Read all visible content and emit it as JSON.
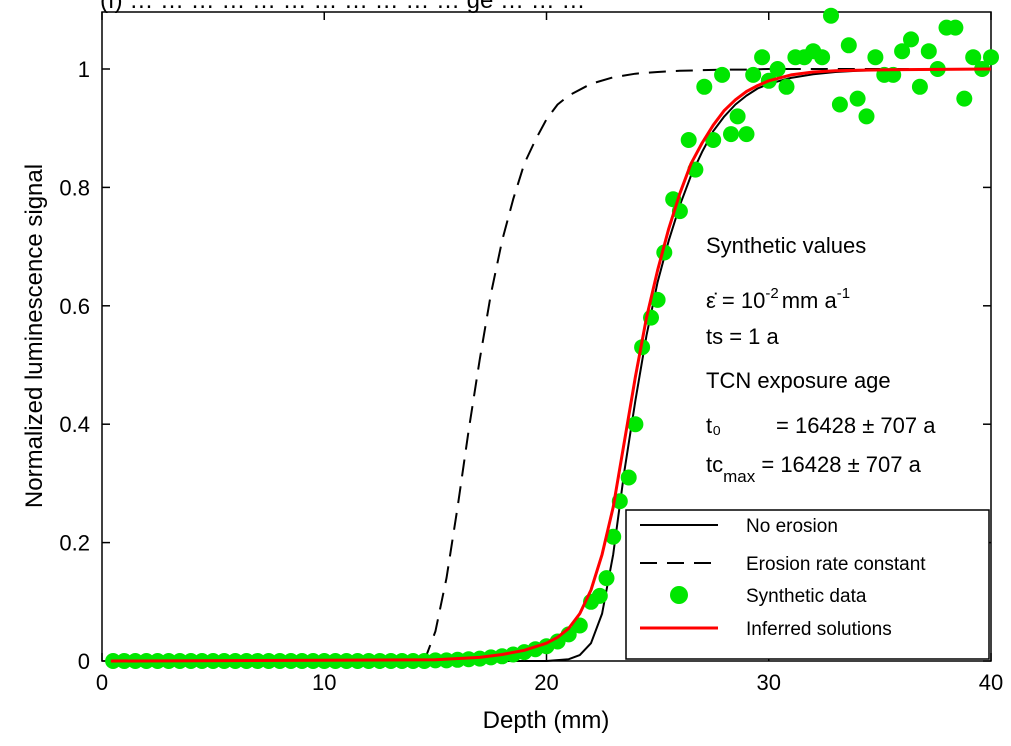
{
  "chart_data": {
    "type": "line",
    "title": "(f) … … … … … … … … … … … ge … … …",
    "xlabel": "Depth (mm)",
    "ylabel": "Normalized luminescence signal",
    "xlim": [
      0,
      40
    ],
    "ylim": [
      0,
      1.1
    ],
    "xticks": [
      0,
      10,
      20,
      30,
      40
    ],
    "yticks": [
      0,
      0.2,
      0.4,
      0.6,
      0.8,
      1
    ],
    "xtick_labels": [
      "0",
      "10",
      "20",
      "30",
      "40"
    ],
    "ytick_labels": [
      "0",
      "0.2",
      "0.4",
      "0.6",
      "0.8",
      "1"
    ],
    "grid": false,
    "legend_position": "bottom-right",
    "series": [
      {
        "name": "No erosion",
        "style": "solid",
        "color": "#000000",
        "x": [
          0.4,
          20.0,
          21.0,
          21.5,
          22.0,
          22.5,
          23.0,
          23.5,
          24.0,
          24.5,
          25.0,
          25.5,
          26.0,
          26.5,
          27.0,
          27.5,
          28.0,
          28.5,
          29.0,
          29.5,
          30.0,
          31.0,
          32.0,
          33.0,
          34.0,
          36.0,
          40.0
        ],
        "y": [
          0,
          0.0,
          0.003,
          0.01,
          0.03,
          0.08,
          0.18,
          0.32,
          0.44,
          0.55,
          0.64,
          0.71,
          0.77,
          0.82,
          0.86,
          0.895,
          0.92,
          0.94,
          0.955,
          0.967,
          0.975,
          0.985,
          0.991,
          0.995,
          0.997,
          0.999,
          1.0
        ]
      },
      {
        "name": "Erosion rate constant",
        "style": "dashed",
        "color": "#000000",
        "x": [
          14.5,
          15.0,
          15.5,
          16.0,
          16.5,
          17.0,
          17.5,
          18.0,
          18.5,
          19.0,
          19.5,
          20.0,
          20.5,
          21.0,
          22.0,
          23.0,
          24.0,
          25.0,
          26.0,
          27.0,
          28.0,
          29.0,
          30.0,
          40.0
        ],
        "y": [
          0.0,
          0.05,
          0.14,
          0.26,
          0.39,
          0.51,
          0.62,
          0.71,
          0.78,
          0.84,
          0.88,
          0.915,
          0.94,
          0.955,
          0.975,
          0.986,
          0.992,
          0.995,
          0.997,
          0.998,
          0.999,
          0.999,
          1.0,
          1.0
        ]
      },
      {
        "name": "Synthetic data",
        "style": "markers",
        "color": "#00e600",
        "x": [
          0.5,
          1.0,
          1.5,
          2.0,
          2.5,
          3.0,
          3.5,
          4.0,
          4.5,
          5.0,
          5.5,
          6.0,
          6.5,
          7.0,
          7.5,
          8.0,
          8.5,
          9.0,
          9.5,
          10.0,
          10.5,
          11.0,
          11.5,
          12.0,
          12.5,
          13.0,
          13.5,
          14.0,
          14.5,
          15.0,
          15.5,
          16.0,
          16.5,
          17.0,
          17.5,
          18.0,
          18.5,
          19.0,
          19.5,
          20.0,
          20.5,
          21.0,
          21.5,
          22.0,
          22.4,
          22.7,
          23.0,
          23.3,
          23.7,
          24.0,
          24.3,
          24.7,
          25.0,
          25.3,
          25.7,
          26.0,
          26.4,
          26.7,
          27.1,
          27.5,
          27.9,
          28.3,
          28.6,
          29.0,
          29.3,
          29.7,
          30.0,
          30.4,
          30.8,
          31.2,
          31.6,
          32.0,
          32.4,
          32.8,
          33.2,
          33.6,
          34.0,
          34.4,
          34.8,
          35.2,
          35.6,
          36.0,
          36.4,
          36.8,
          37.2,
          37.6,
          38.0,
          38.4,
          38.8,
          39.2,
          39.6,
          40.0
        ],
        "y": [
          0.0,
          0.0,
          0.0,
          0.0,
          0.0,
          0.0,
          0.0,
          0.0,
          0.0,
          0.0,
          0.0,
          0.0,
          0.0,
          0.0,
          0.0,
          0.0,
          0.0,
          0.0,
          0.0,
          0.0,
          0.0,
          0.0,
          0.0,
          0.0,
          0.0,
          0.0,
          0.0,
          0.0,
          0.0,
          0.001,
          0.001,
          0.002,
          0.003,
          0.004,
          0.006,
          0.008,
          0.011,
          0.015,
          0.02,
          0.025,
          0.033,
          0.045,
          0.06,
          0.1,
          0.11,
          0.14,
          0.21,
          0.27,
          0.31,
          0.4,
          0.53,
          0.58,
          0.61,
          0.69,
          0.78,
          0.76,
          0.88,
          0.83,
          0.97,
          0.88,
          0.99,
          0.89,
          0.92,
          0.89,
          0.99,
          1.02,
          0.98,
          1.0,
          0.97,
          1.02,
          1.02,
          1.03,
          1.02,
          1.09,
          0.94,
          1.04,
          0.95,
          0.92,
          1.02,
          0.99,
          0.99,
          1.03,
          1.05,
          0.97,
          1.03,
          1.0,
          1.07,
          1.07,
          0.95,
          1.02,
          1.0,
          1.02
        ]
      },
      {
        "name": "Inferred solutions",
        "style": "solid",
        "color": "#ff0000",
        "x": [
          0.4,
          15.0,
          17.0,
          18.0,
          19.0,
          20.0,
          20.5,
          21.0,
          21.5,
          22.0,
          22.5,
          23.0,
          23.5,
          24.0,
          24.5,
          25.0,
          25.5,
          26.0,
          26.5,
          27.0,
          27.5,
          28.0,
          28.5,
          29.0,
          29.5,
          30.0,
          31.0,
          32.0,
          33.0,
          34.0,
          36.0,
          40.0
        ],
        "y": [
          0,
          0.002,
          0.006,
          0.011,
          0.018,
          0.03,
          0.04,
          0.055,
          0.08,
          0.12,
          0.18,
          0.26,
          0.37,
          0.48,
          0.58,
          0.66,
          0.73,
          0.79,
          0.84,
          0.875,
          0.905,
          0.93,
          0.948,
          0.962,
          0.972,
          0.98,
          0.99,
          0.995,
          0.997,
          0.998,
          0.999,
          1.0
        ]
      }
    ],
    "annotations": {
      "line1": "Synthetic values",
      "line2_sym": "ε̇",
      "line2_mid": " = 10",
      "line2_exp": "-2",
      "line2_unit": "mm a",
      "line2_unit_exp": "-1",
      "line3": "ts = 1 a",
      "line4": "TCN exposure age",
      "line5_label": "t₀",
      "line5_value": "= 16428 ± 707 a",
      "line6_label": "tc",
      "line6_sub": "max",
      "line6_value": " = 16428 ± 707 a"
    }
  }
}
